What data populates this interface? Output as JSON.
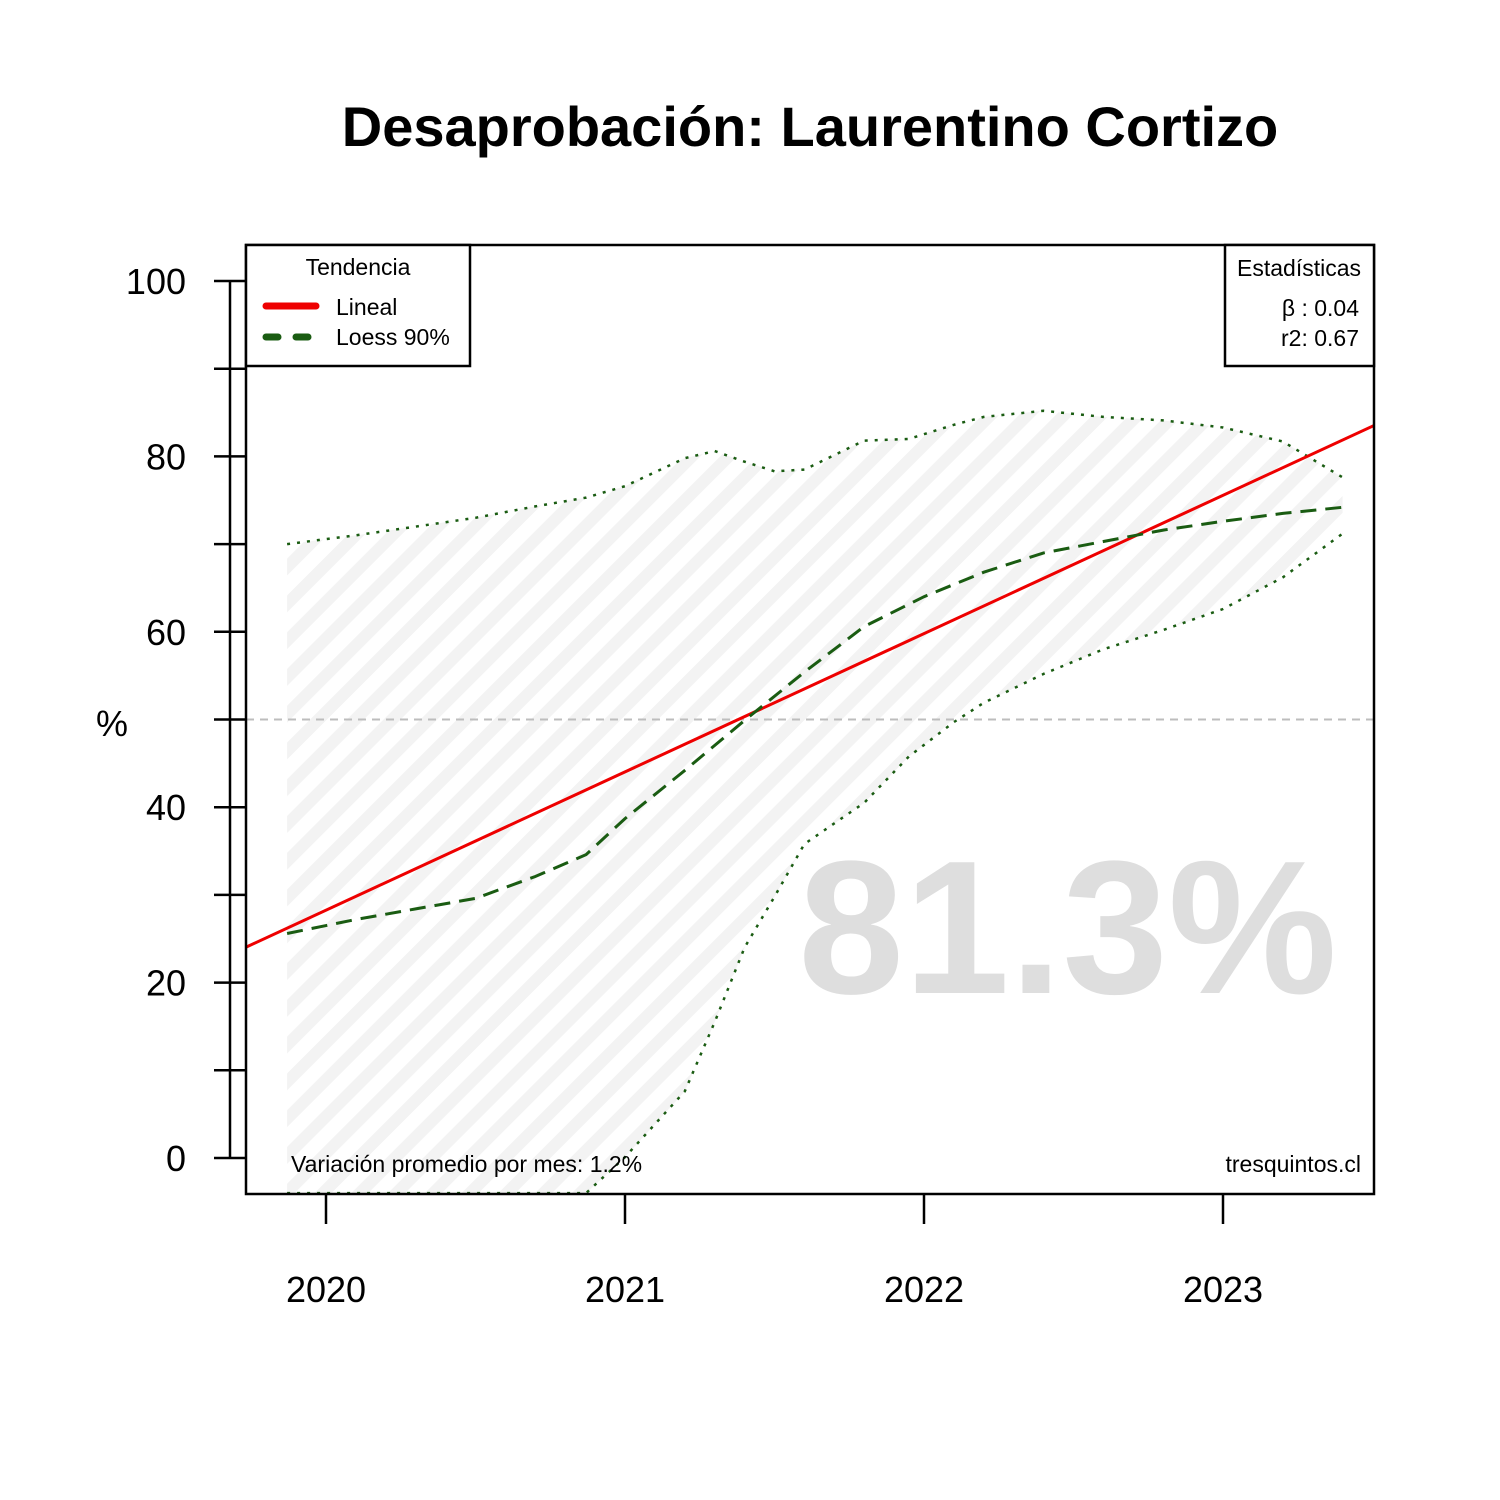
{
  "chart_data": {
    "type": "line",
    "title": "Desaprobación: Laurentino Cortizo",
    "ylabel": "%",
    "xlabel": "",
    "ylim": [
      -4,
      104
    ],
    "xlim": [
      2019.73,
      2023.51
    ],
    "y_ticks": [
      0,
      20,
      40,
      60,
      80,
      100
    ],
    "x_ticks": [
      2020,
      2021,
      2022,
      2023
    ],
    "x_tick_labels": [
      "2020",
      "2021",
      "2022",
      "2023"
    ],
    "reference_line": 50,
    "big_value": "81.3%",
    "legend": {
      "title": "Tendencia",
      "placement": "top-left",
      "entries": [
        {
          "label": "Lineal",
          "color": "#ee0000",
          "style": "solid"
        },
        {
          "label": "Loess 90%",
          "color": "#1a5c12",
          "style": "dashed"
        }
      ]
    },
    "stats": {
      "title": "Estadísticas",
      "placement": "top-right",
      "beta": "β : 0.04",
      "r2": "r2: 0.67"
    },
    "footer_left": "Variación promedio por mes: 1.2%",
    "footer_right": "tresquintos.cl",
    "series": [
      {
        "name": "Lineal",
        "color": "#ee0000",
        "style": "solid",
        "x": [
          2019.73,
          2023.51
        ],
        "y": [
          24.0,
          83.6
        ]
      },
      {
        "name": "Loess 90%",
        "color": "#1a5c12",
        "style": "dashed",
        "x": [
          2019.87,
          2020.1,
          2020.3,
          2020.5,
          2020.7,
          2020.87,
          2021.0,
          2021.2,
          2021.4,
          2021.6,
          2021.8,
          2022.0,
          2022.2,
          2022.4,
          2022.6,
          2022.8,
          2023.0,
          2023.2,
          2023.4
        ],
        "y": [
          25.6,
          27.2,
          28.4,
          29.6,
          32.1,
          34.6,
          38.7,
          44.2,
          49.9,
          55.4,
          60.6,
          64.0,
          66.8,
          69.0,
          70.3,
          71.6,
          72.6,
          73.5,
          74.2
        ]
      }
    ],
    "band": {
      "color": "#1a5c12",
      "style": "dotted",
      "x": [
        2019.87,
        2020.1,
        2020.3,
        2020.5,
        2020.7,
        2020.87,
        2021.0,
        2021.2,
        2021.3,
        2021.4,
        2021.5,
        2021.6,
        2021.8,
        2021.95,
        2022.1,
        2022.2,
        2022.4,
        2022.6,
        2022.8,
        2023.0,
        2023.2,
        2023.4
      ],
      "upper": [
        70.0,
        71.0,
        72.0,
        73.0,
        74.3,
        75.3,
        76.6,
        79.8,
        80.6,
        79.4,
        78.3,
        78.5,
        81.8,
        82.0,
        83.6,
        84.5,
        85.2,
        84.5,
        84.1,
        83.3,
        81.7,
        77.6
      ],
      "lower": [
        -4.0,
        -4.0,
        -4.0,
        -4.0,
        -4.0,
        -4.0,
        0.1,
        7.6,
        15.5,
        24.0,
        29.8,
        35.8,
        40.5,
        45.8,
        49.7,
        51.9,
        55.2,
        58.0,
        60.2,
        62.6,
        66.2,
        71.2
      ]
    }
  }
}
